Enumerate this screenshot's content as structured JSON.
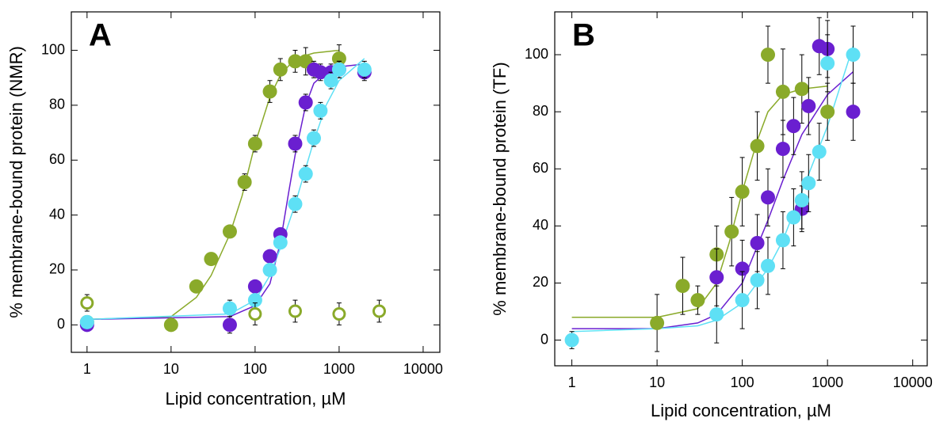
{
  "chart_data": [
    {
      "type": "scatter",
      "panel_label": "A",
      "x_label": "Lipid concentration, µM",
      "y_label": "% membrane-bound protein (NMR)",
      "xscale": "log",
      "xlim": [
        0.65,
        15800
      ],
      "ylim": [
        -10,
        114
      ],
      "xticks": [
        1,
        10,
        100,
        1000,
        10000
      ],
      "yticks": [
        0,
        20,
        40,
        60,
        80,
        100
      ],
      "series": [
        {
          "style": "line",
          "color": "#8aaa2a",
          "x": [
            1,
            10,
            20,
            30,
            50,
            70,
            100,
            150,
            200,
            300,
            500,
            1000
          ],
          "values": [
            2,
            3,
            10,
            18,
            33,
            47,
            66,
            83,
            91,
            97,
            99,
            100
          ]
        },
        {
          "style": "line",
          "color": "#6a1fd0",
          "x": [
            1,
            50,
            100,
            150,
            200,
            250,
            300,
            400,
            500,
            700,
            1000,
            2000
          ],
          "values": [
            2,
            3,
            7,
            15,
            30,
            48,
            62,
            80,
            88,
            92,
            94,
            95
          ]
        },
        {
          "style": "line",
          "color": "#5ee0f5",
          "x": [
            1,
            50,
            100,
            150,
            200,
            300,
            400,
            500,
            700,
            1000,
            2000
          ],
          "values": [
            2,
            4,
            9,
            18,
            28,
            44,
            57,
            67,
            80,
            89,
            97
          ]
        },
        {
          "style": "filled",
          "color": "#8aaa2a",
          "x": [
            1,
            10,
            20,
            30,
            50,
            75,
            100,
            150,
            200,
            300,
            400,
            1000
          ],
          "values": [
            1,
            0,
            14,
            24,
            34,
            52,
            66,
            85,
            93,
            96,
            96,
            97
          ],
          "errors": [
            2,
            2,
            2,
            2,
            2,
            3,
            3,
            4,
            4,
            4,
            5,
            5
          ]
        },
        {
          "style": "filled",
          "color": "#6a1fd0",
          "x": [
            1,
            50,
            100,
            150,
            200,
            300,
            400,
            500,
            600,
            800,
            1000,
            2000
          ],
          "values": [
            0,
            0,
            14,
            25,
            33,
            66,
            81,
            93,
            92,
            92,
            93,
            92
          ],
          "errors": [
            2,
            3,
            2,
            2,
            2,
            3,
            3,
            3,
            3,
            3,
            3,
            3
          ]
        },
        {
          "style": "filled",
          "color": "#5ee0f5",
          "x": [
            1,
            50,
            100,
            150,
            200,
            300,
            400,
            500,
            600,
            800,
            1000,
            2000
          ],
          "values": [
            1,
            6,
            9,
            20,
            30,
            44,
            55,
            68,
            78,
            89,
            93,
            93
          ],
          "errors": [
            2,
            3,
            2,
            2,
            2,
            3,
            3,
            3,
            3,
            3,
            3,
            3
          ]
        },
        {
          "style": "open",
          "color": "#8aaa2a",
          "x": [
            1,
            100,
            300,
            1000,
            3000
          ],
          "values": [
            8,
            4,
            5,
            4,
            5
          ],
          "errors": [
            3,
            4,
            4,
            4,
            4
          ]
        }
      ]
    },
    {
      "type": "scatter",
      "panel_label": "B",
      "x_label": "Lipid concentration, µM",
      "y_label": "% membrane-bound protein (TF)",
      "xscale": "log",
      "xlim": [
        0.63,
        14800
      ],
      "ylim": [
        -9,
        115
      ],
      "xticks": [
        1,
        10,
        100,
        1000,
        10000
      ],
      "yticks": [
        0,
        20,
        40,
        60,
        80,
        100
      ],
      "series": [
        {
          "style": "line",
          "color": "#8aaa2a",
          "x": [
            1,
            10,
            30,
            50,
            70,
            100,
            150,
            200,
            300,
            500,
            1000
          ],
          "values": [
            8,
            8,
            11,
            20,
            34,
            52,
            70,
            80,
            86,
            88,
            89
          ]
        },
        {
          "style": "line",
          "color": "#6a1fd0",
          "x": [
            1,
            10,
            30,
            50,
            100,
            200,
            300,
            500,
            1000,
            2000
          ],
          "values": [
            4,
            4,
            6,
            9,
            20,
            42,
            56,
            72,
            86,
            94
          ]
        },
        {
          "style": "line",
          "color": "#5ee0f5",
          "x": [
            1,
            10,
            30,
            50,
            100,
            200,
            300,
            500,
            1000,
            2000
          ],
          "values": [
            3,
            4,
            5,
            7,
            13,
            25,
            35,
            52,
            75,
            103
          ]
        },
        {
          "style": "filled",
          "color": "#8aaa2a",
          "x": [
            10,
            20,
            30,
            50,
            75,
            100,
            150,
            200,
            300,
            500,
            1000
          ],
          "values": [
            6,
            19,
            14,
            30,
            38,
            52,
            68,
            100,
            87,
            88,
            80
          ],
          "errors": [
            10,
            10,
            5,
            10,
            12,
            12,
            12,
            10,
            15,
            12,
            10
          ]
        },
        {
          "style": "filled",
          "color": "#6a1fd0",
          "x": [
            50,
            100,
            150,
            200,
            300,
            400,
            500,
            600,
            800,
            1000,
            2000
          ],
          "values": [
            22,
            25,
            34,
            50,
            67,
            75,
            46,
            82,
            103,
            102,
            80
          ],
          "errors": [
            10,
            10,
            10,
            10,
            10,
            10,
            8,
            10,
            10,
            10,
            10
          ]
        },
        {
          "style": "filled",
          "color": "#5ee0f5",
          "x": [
            1,
            50,
            100,
            150,
            200,
            300,
            400,
            500,
            600,
            800,
            1000,
            2000
          ],
          "values": [
            0,
            9,
            14,
            21,
            26,
            35,
            43,
            49,
            55,
            66,
            97,
            100
          ],
          "errors": [
            3,
            10,
            10,
            10,
            10,
            10,
            10,
            10,
            10,
            10,
            10,
            10
          ]
        }
      ]
    }
  ]
}
